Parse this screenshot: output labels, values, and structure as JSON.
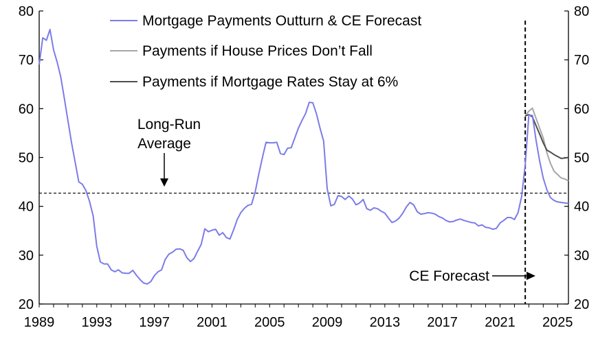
{
  "chart_data": {
    "type": "line",
    "x_unit": "year",
    "xlim": [
      1989,
      2025.75
    ],
    "ylim": [
      20,
      80
    ],
    "y_ticks": [
      20,
      30,
      40,
      50,
      60,
      70,
      80
    ],
    "x_ticks": [
      1989,
      1993,
      1997,
      2001,
      2005,
      2009,
      2013,
      2017,
      2021,
      2025
    ],
    "x_tick_labels": [
      "1989",
      "1993",
      "1997",
      "2001",
      "2005",
      "2009",
      "2013",
      "2017",
      "2021",
      "2025"
    ],
    "y_tick_labels": [
      "20",
      "30",
      "40",
      "50",
      "60",
      "70",
      "80"
    ],
    "grid": false,
    "legend_position": "top",
    "series": [
      {
        "name": "Mortgage Payments Outturn & CE Forecast",
        "color": "#7b7bea",
        "x": [
          1989.0,
          1989.25,
          1989.5,
          1989.75,
          1990.0,
          1990.25,
          1990.5,
          1990.75,
          1991.0,
          1991.25,
          1991.5,
          1991.75,
          1992.0,
          1992.25,
          1992.5,
          1992.75,
          1993.0,
          1993.25,
          1993.5,
          1993.75,
          1994.0,
          1994.25,
          1994.5,
          1994.75,
          1995.0,
          1995.25,
          1995.5,
          1995.75,
          1996.0,
          1996.25,
          1996.5,
          1996.75,
          1997.0,
          1997.25,
          1997.5,
          1997.75,
          1998.0,
          1998.25,
          1998.5,
          1998.75,
          1999.0,
          1999.25,
          1999.5,
          1999.75,
          2000.0,
          2000.25,
          2000.5,
          2000.75,
          2001.0,
          2001.25,
          2001.5,
          2001.75,
          2002.0,
          2002.25,
          2002.5,
          2002.75,
          2003.0,
          2003.25,
          2003.5,
          2003.75,
          2004.0,
          2004.25,
          2004.5,
          2004.75,
          2005.0,
          2005.25,
          2005.5,
          2005.75,
          2006.0,
          2006.25,
          2006.5,
          2006.75,
          2007.0,
          2007.25,
          2007.5,
          2007.75,
          2008.0,
          2008.25,
          2008.5,
          2008.75,
          2009.0,
          2009.25,
          2009.5,
          2009.75,
          2010.0,
          2010.25,
          2010.5,
          2010.75,
          2011.0,
          2011.25,
          2011.5,
          2011.75,
          2012.0,
          2012.25,
          2012.5,
          2012.75,
          2013.0,
          2013.25,
          2013.5,
          2013.75,
          2014.0,
          2014.25,
          2014.5,
          2014.75,
          2015.0,
          2015.25,
          2015.5,
          2015.75,
          2016.0,
          2016.25,
          2016.5,
          2016.75,
          2017.0,
          2017.25,
          2017.5,
          2017.75,
          2018.0,
          2018.25,
          2018.5,
          2018.75,
          2019.0,
          2019.25,
          2019.5,
          2019.75,
          2020.0,
          2020.25,
          2020.5,
          2020.75,
          2021.0,
          2021.25,
          2021.5,
          2021.75,
          2022.0,
          2022.25,
          2022.5,
          2022.75,
          2023.0,
          2023.25,
          2023.5,
          2023.75,
          2024.0,
          2024.25,
          2024.5,
          2024.75,
          2025.0,
          2025.25,
          2025.5,
          2025.75
        ],
        "values": [
          69.0,
          74.5,
          74.0,
          76.2,
          72.0,
          69.5,
          66.5,
          62.0,
          57.5,
          53.0,
          49.0,
          45.0,
          44.5,
          43.2,
          41.0,
          38.0,
          31.8,
          28.6,
          28.2,
          28.2,
          27.0,
          26.6,
          27.0,
          26.4,
          26.3,
          26.3,
          26.9,
          25.9,
          25.0,
          24.3,
          24.1,
          24.6,
          25.8,
          26.6,
          27.0,
          29.1,
          30.2,
          30.6,
          31.2,
          31.3,
          31.0,
          29.5,
          28.7,
          29.3,
          30.8,
          32.2,
          35.4,
          34.8,
          35.1,
          35.3,
          34.1,
          34.6,
          33.6,
          33.3,
          35.2,
          37.3,
          38.7,
          39.6,
          40.2,
          40.4,
          43.0,
          46.6,
          50.0,
          53.1,
          53.0,
          53.0,
          53.1,
          50.8,
          50.6,
          51.9,
          52.0,
          54.0,
          56.0,
          57.6,
          59.0,
          61.3,
          61.2,
          59.0,
          56.0,
          53.4,
          43.6,
          40.1,
          40.4,
          42.2,
          42.0,
          41.4,
          42.1,
          41.5,
          40.3,
          40.7,
          41.4,
          39.5,
          39.2,
          39.7,
          39.5,
          39.0,
          38.6,
          37.6,
          36.7,
          37.0,
          37.6,
          38.6,
          39.9,
          40.8,
          40.3,
          38.9,
          38.4,
          38.5,
          38.7,
          38.6,
          38.4,
          37.9,
          37.6,
          37.1,
          36.8,
          36.9,
          37.2,
          37.4,
          37.1,
          36.9,
          36.7,
          36.6,
          36.0,
          36.2,
          35.7,
          35.6,
          35.3,
          35.5,
          36.6,
          37.1,
          37.7,
          37.7,
          37.3,
          38.7,
          42.0,
          48.5,
          58.7,
          58.6,
          53.5,
          49.3,
          45.8,
          43.4,
          41.8,
          41.2,
          40.9,
          40.8,
          40.7,
          40.6
        ]
      },
      {
        "name": "Payments if House Prices Don’t Fall",
        "color": "#a6a6a6",
        "x": [
          2022.75,
          2023.0,
          2023.25,
          2023.5,
          2023.75,
          2024.0,
          2024.25,
          2024.5,
          2024.75,
          2025.0,
          2025.25,
          2025.5,
          2025.75
        ],
        "values": [
          58.5,
          59.5,
          60.1,
          58.0,
          56.0,
          54.0,
          51.0,
          48.8,
          47.2,
          46.5,
          45.8,
          45.6,
          45.2
        ]
      },
      {
        "name": "Payments if Mortgage Rates Stay at 6%",
        "color": "#4d4d4d",
        "x": [
          2022.75,
          2023.0,
          2023.25,
          2023.5,
          2023.75,
          2024.0,
          2024.25,
          2024.5,
          2024.75,
          2025.0,
          2025.25,
          2025.5,
          2025.75
        ],
        "values": [
          58.5,
          58.8,
          58.3,
          56.5,
          54.8,
          53.0,
          51.5,
          51.1,
          50.6,
          50.2,
          49.8,
          49.9,
          50.0
        ]
      }
    ],
    "reference_lines": [
      {
        "label": "Long-Run Average",
        "axis": "y",
        "value": 42.7,
        "style": "dashed"
      },
      {
        "label": "CE Forecast",
        "axis": "x",
        "value": 2022.75,
        "style": "dashed"
      }
    ],
    "annotations": {
      "long_run_line1": "Long-Run",
      "long_run_line2": "Average",
      "forecast": "CE Forecast"
    }
  }
}
